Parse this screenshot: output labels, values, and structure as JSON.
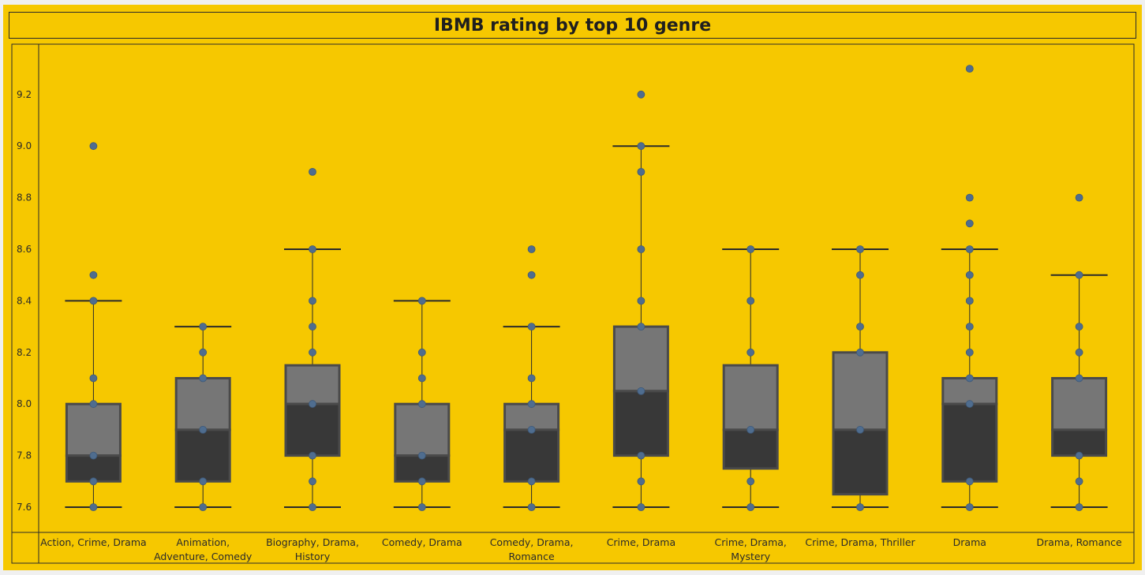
{
  "title": "IBMB rating by top 10 genre",
  "colors": {
    "background": "#f6c800",
    "box_upper": "#767676",
    "box_lower": "#383838",
    "box_border": "#4a4a4a",
    "point": "#4f6d8f",
    "line": "#2a2a2a"
  },
  "chart_data": {
    "type": "boxplot",
    "title": "IBMB rating by top 10 genre",
    "xlabel": "",
    "ylabel": "",
    "ylim": [
      7.52,
      9.35
    ],
    "yticks": [
      "7.6",
      "7.8",
      "8.0",
      "8.2",
      "8.4",
      "8.6",
      "8.8",
      "9.0",
      "9.2"
    ],
    "grid": false,
    "categories": [
      {
        "lines": [
          "Action, Crime, Drama"
        ],
        "whisker_low": 7.6,
        "q1": 7.7,
        "median": 7.8,
        "q3": 8.0,
        "whisker_high": 8.4,
        "points": [
          7.6,
          7.7,
          7.8,
          8.0,
          8.1,
          8.4,
          8.5,
          9.0
        ]
      },
      {
        "lines": [
          "Animation,",
          "Adventure, Comedy"
        ],
        "whisker_low": 7.6,
        "q1": 7.7,
        "median": 7.9,
        "q3": 8.1,
        "whisker_high": 8.3,
        "points": [
          7.6,
          7.7,
          7.9,
          8.1,
          8.2,
          8.3
        ]
      },
      {
        "lines": [
          "Biography, Drama,",
          "History"
        ],
        "whisker_low": 7.6,
        "q1": 7.8,
        "median": 8.0,
        "q3": 8.15,
        "whisker_high": 8.6,
        "points": [
          7.6,
          7.7,
          7.8,
          8.0,
          8.2,
          8.3,
          8.4,
          8.6,
          8.9
        ]
      },
      {
        "lines": [
          "Comedy, Drama"
        ],
        "whisker_low": 7.6,
        "q1": 7.7,
        "median": 7.8,
        "q3": 8.0,
        "whisker_high": 8.4,
        "points": [
          7.6,
          7.7,
          7.8,
          8.0,
          8.1,
          8.2,
          8.4
        ]
      },
      {
        "lines": [
          "Comedy, Drama,",
          "Romance"
        ],
        "whisker_low": 7.6,
        "q1": 7.7,
        "median": 7.9,
        "q3": 8.0,
        "whisker_high": 8.3,
        "points": [
          7.6,
          7.7,
          7.9,
          8.0,
          8.1,
          8.3,
          8.5,
          8.6
        ]
      },
      {
        "lines": [
          "Crime, Drama"
        ],
        "whisker_low": 7.6,
        "q1": 7.8,
        "median": 8.05,
        "q3": 8.3,
        "whisker_high": 9.0,
        "points": [
          7.6,
          7.7,
          7.8,
          8.05,
          8.3,
          8.4,
          8.6,
          8.9,
          9.0,
          9.2
        ]
      },
      {
        "lines": [
          "Crime, Drama,",
          "Mystery"
        ],
        "whisker_low": 7.6,
        "q1": 7.75,
        "median": 7.9,
        "q3": 8.15,
        "whisker_high": 8.6,
        "points": [
          7.6,
          7.7,
          7.9,
          8.2,
          8.4,
          8.6
        ]
      },
      {
        "lines": [
          "Crime, Drama, Thriller"
        ],
        "whisker_low": 7.6,
        "q1": 7.65,
        "median": 7.9,
        "q3": 8.2,
        "whisker_high": 8.6,
        "points": [
          7.6,
          7.9,
          8.2,
          8.3,
          8.5,
          8.6
        ]
      },
      {
        "lines": [
          "Drama"
        ],
        "whisker_low": 7.6,
        "q1": 7.7,
        "median": 8.0,
        "q3": 8.1,
        "whisker_high": 8.6,
        "points": [
          7.6,
          7.7,
          8.0,
          8.1,
          8.2,
          8.3,
          8.4,
          8.5,
          8.6,
          8.7,
          8.8,
          9.3
        ]
      },
      {
        "lines": [
          "Drama, Romance"
        ],
        "whisker_low": 7.6,
        "q1": 7.8,
        "median": 7.9,
        "q3": 8.1,
        "whisker_high": 8.5,
        "points": [
          7.6,
          7.7,
          7.8,
          8.1,
          8.2,
          8.3,
          8.5,
          8.8
        ]
      }
    ]
  }
}
